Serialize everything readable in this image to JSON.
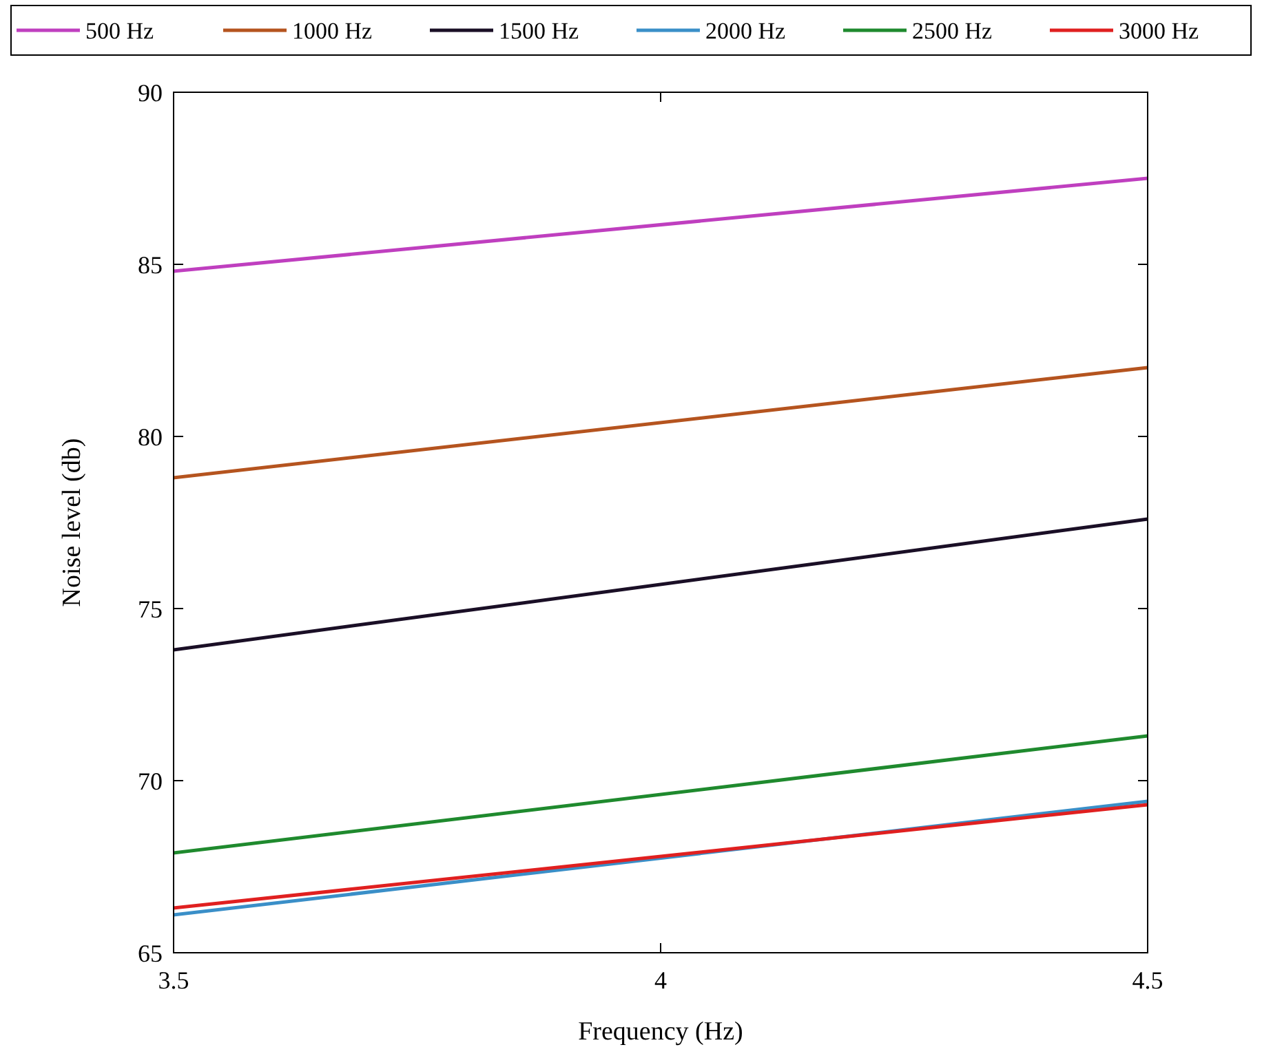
{
  "chart_data": {
    "type": "line",
    "xlabel": "Frequency (Hz)",
    "ylabel": "Noise level (db)",
    "x": [
      3.5,
      4.5
    ],
    "series": [
      {
        "name": "500 Hz",
        "color": "#bf3fbf",
        "values": [
          84.8,
          87.5
        ]
      },
      {
        "name": "1000 Hz",
        "color": "#b5541f",
        "values": [
          78.8,
          82.0
        ]
      },
      {
        "name": "1500 Hz",
        "color": "#1a0f26",
        "values": [
          73.8,
          77.6
        ]
      },
      {
        "name": "2000 Hz",
        "color": "#3a8fc8",
        "values": [
          66.1,
          69.4
        ]
      },
      {
        "name": "2500 Hz",
        "color": "#1f8a2e",
        "values": [
          67.9,
          71.3
        ]
      },
      {
        "name": "3000 Hz",
        "color": "#e02020",
        "values": [
          66.3,
          69.3
        ]
      }
    ],
    "xlim": [
      3.5,
      4.5
    ],
    "xticks": [
      3.5,
      4,
      4.5
    ],
    "ylim": [
      65,
      90
    ],
    "yticks": [
      65,
      70,
      75,
      80,
      85,
      90
    ],
    "grid": false,
    "legend": "top",
    "marker": "none",
    "line_style": "solid"
  }
}
